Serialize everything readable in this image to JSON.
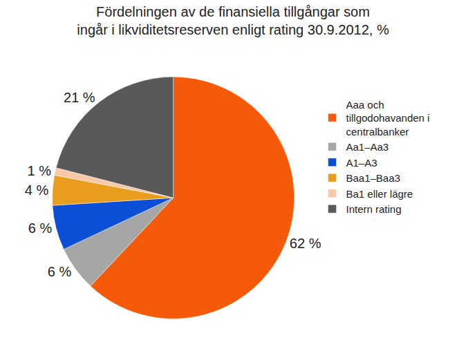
{
  "chart_data": {
    "type": "pie",
    "title": "Fördelningen av de finansiella tillgångar som\ningår i likviditetsreserven enligt rating 30.9.2012, %",
    "categories": [
      "Aaa och tillgodohavanden i centralbanker",
      "Aa1–Aa3",
      "A1–A3",
      "Baa1–Baa3",
      "Ba1 eller lägre",
      "Intern rating"
    ],
    "values": [
      62,
      6,
      6,
      4,
      1,
      21
    ],
    "value_labels": [
      "62 %",
      "6 %",
      "6 %",
      "4 %",
      "1 %",
      "21 %"
    ],
    "colors": [
      "#f55a0a",
      "#a6a6a6",
      "#0a4fd6",
      "#e89e1c",
      "#f9c8a6",
      "#595959"
    ],
    "data_labels": true,
    "legend": "right"
  }
}
